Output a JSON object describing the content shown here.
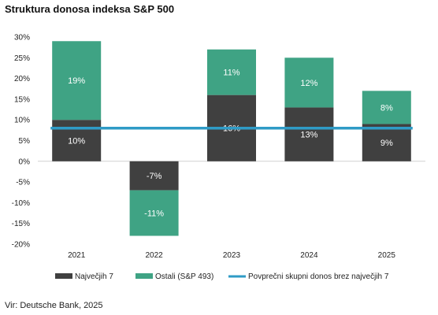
{
  "title": "Struktura donosa indeksa S&P 500",
  "source": "Vir: Deutsche Bank, 2025",
  "chart_data": {
    "type": "bar",
    "stacked": true,
    "categories": [
      "2021",
      "2022",
      "2023",
      "2024",
      "2025"
    ],
    "series": [
      {
        "name": "Največjih 7",
        "values": [
          10,
          -7,
          16,
          13,
          9
        ],
        "labels": [
          "10%",
          "-7%",
          "16%",
          "13%",
          "9%"
        ],
        "color": "#404040"
      },
      {
        "name": "Ostali (S&P 493)",
        "values": [
          19,
          -11,
          11,
          12,
          8
        ],
        "labels": [
          "19%",
          "-11%",
          "11%",
          "12%",
          "8%"
        ],
        "color": "#3fa384"
      }
    ],
    "line": {
      "name": "Povprečni skupni donos brez največjih 7",
      "value": 8,
      "color": "#2f9bc6"
    },
    "ylim": [
      -20,
      30
    ],
    "yticks": [
      30,
      25,
      20,
      15,
      10,
      5,
      0,
      -5,
      -10,
      -15,
      -20
    ],
    "ytick_labels": [
      "30%",
      "25%",
      "20%",
      "15%",
      "10%",
      "5%",
      "0%",
      "-5%",
      "-10%",
      "-15%",
      "-20%"
    ],
    "legend_position": "bottom",
    "grid": false
  }
}
